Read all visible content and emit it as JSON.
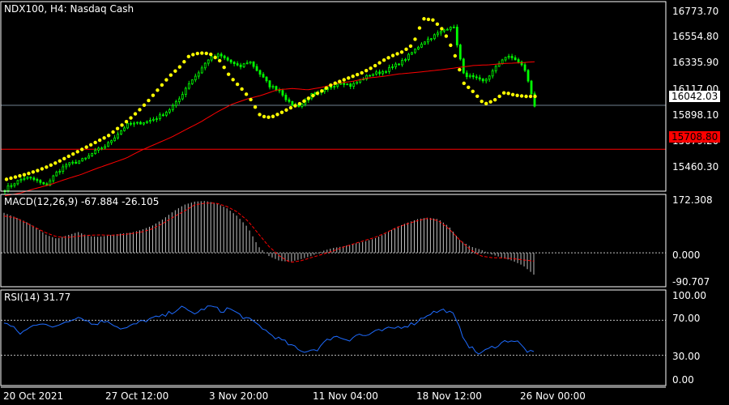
{
  "header": {
    "title": "NDX100, H4:  Nasdaq Cash"
  },
  "price_axis": {
    "ticks": [
      "16773.70",
      "16554.80",
      "16335.90",
      "16117.00",
      "15898.10",
      "15679.20",
      "15460.30"
    ],
    "current_price": "16042.03",
    "level_price": "15708.80"
  },
  "macd": {
    "label": "MACD(12,26,9) -67.884 -26.105",
    "ticks": [
      "172.308",
      "0.000",
      "-90.707"
    ]
  },
  "rsi": {
    "label": "RSI(14) 31.77",
    "ticks": [
      "100.00",
      "70.00",
      "30.00",
      "0.00"
    ]
  },
  "time_axis": {
    "ticks": [
      "20 Oct 2021",
      "27 Oct 12:00",
      "3 Nov 20:00",
      "11 Nov 04:00",
      "18 Nov 12:00",
      "26 Nov 00:00"
    ]
  },
  "colors": {
    "background": "#000000",
    "candle": "#00ff00",
    "sar": "#ffff00",
    "ma": "#ff0000",
    "level": "#ff0000",
    "current": "#708090",
    "macd_hist": "#c0c0c0",
    "macd_signal": "#ff0000",
    "rsi": "#1e6bff",
    "frame": "#ffffff",
    "level_dotted": "#c0c0c0"
  },
  "chart_data": [
    {
      "type": "candlestick",
      "title": "NDX100, H4:  Nasdaq Cash",
      "ylim": [
        15390,
        16830
      ],
      "x_ticks": [
        "20 Oct 2021",
        "27 Oct 12:00",
        "3 Nov 20:00",
        "11 Nov 04:00",
        "18 Nov 12:00",
        "26 Nov 00:00"
      ],
      "close_anchors": [
        15405,
        15455,
        15495,
        15475,
        15430,
        15525,
        15590,
        15610,
        15640,
        15700,
        15740,
        15820,
        15895,
        15905,
        15920,
        15950,
        16000,
        16075,
        16205,
        16290,
        16395,
        16425,
        16380,
        16330,
        16380,
        16285,
        16190,
        16155,
        16050,
        16040,
        16120,
        16135,
        16185,
        16220,
        16190,
        16240,
        16280,
        16295,
        16330,
        16375,
        16445,
        16520,
        16565,
        16610,
        16655,
        16280,
        16250,
        16220,
        16310,
        16410,
        16400,
        16325,
        16042
      ],
      "parabolic_sar_anchors": [
        15480,
        15500,
        15520,
        15545,
        15575,
        15610,
        15650,
        15690,
        15730,
        15770,
        15810,
        15870,
        15930,
        16000,
        16080,
        16170,
        16260,
        16330,
        16420,
        16440,
        16435,
        16380,
        16260,
        16180,
        16090,
        15960,
        15950,
        15985,
        16025,
        16060,
        16110,
        16150,
        16200,
        16230,
        16260,
        16290,
        16330,
        16380,
        16420,
        16450,
        16505,
        16700,
        16690,
        16610,
        16450,
        16210,
        16140,
        16050,
        16080,
        16140,
        16120,
        16110,
        16110
      ],
      "moving_average_anchors": [
        15355,
        15375,
        15410,
        15440,
        15480,
        15515,
        15560,
        15600,
        15640,
        15700,
        15750,
        15800,
        15860,
        15920,
        15990,
        16050,
        16090,
        16120,
        16160,
        16170,
        16160,
        16180,
        16210,
        16225,
        16250,
        16262,
        16280,
        16290,
        16302,
        16315,
        16330,
        16345,
        16350,
        16360,
        16365,
        16373
      ],
      "level": 15708.8,
      "current": 16042.03
    },
    {
      "type": "bar",
      "title": "MACD(12,26,9) -67.884 -26.105",
      "ylim": [
        -90.707,
        172.308
      ],
      "histogram_anchors": [
        125,
        112,
        98,
        80,
        56,
        44,
        55,
        65,
        52,
        50,
        55,
        60,
        63,
        72,
        85,
        105,
        130,
        150,
        160,
        162,
        155,
        140,
        115,
        80,
        20,
        -10,
        -25,
        -28,
        -20,
        -10,
        5,
        15,
        20,
        28,
        35,
        45,
        60,
        80,
        93,
        105,
        110,
        105,
        82,
        40,
        20,
        10,
        -5,
        -15,
        -25,
        -40,
        -68
      ],
      "signal_anchors": [
        115,
        110,
        95,
        78,
        62,
        50,
        48,
        52,
        55,
        56,
        55,
        56,
        60,
        65,
        75,
        92,
        112,
        130,
        150,
        155,
        155,
        145,
        128,
        100,
        60,
        20,
        -10,
        -30,
        -25,
        -15,
        -5,
        5,
        18,
        28,
        38,
        48,
        62,
        78,
        90,
        100,
        108,
        100,
        75,
        40,
        10,
        -10,
        -15,
        -16,
        -18,
        -22,
        -26
      ]
    },
    {
      "type": "line",
      "title": "RSI(14) 31.77",
      "ylim": [
        0,
        100
      ],
      "levels": [
        70,
        30
      ],
      "series": [
        {
          "values": [
            68,
            62,
            55,
            60,
            66,
            68,
            60,
            66,
            70,
            74,
            72,
            65,
            68,
            70,
            63,
            60,
            64,
            68,
            71,
            73,
            75,
            80,
            85,
            80,
            78,
            84,
            86,
            80,
            84,
            78,
            73,
            68,
            63,
            55,
            50,
            45,
            40,
            34,
            36,
            37,
            45,
            52,
            50,
            48,
            54,
            52,
            56,
            58,
            60,
            62,
            64,
            66,
            72,
            78,
            80,
            82,
            76,
            55,
            40,
            32,
            35,
            40,
            44,
            48,
            45,
            36,
            31.77
          ]
        }
      ]
    }
  ]
}
